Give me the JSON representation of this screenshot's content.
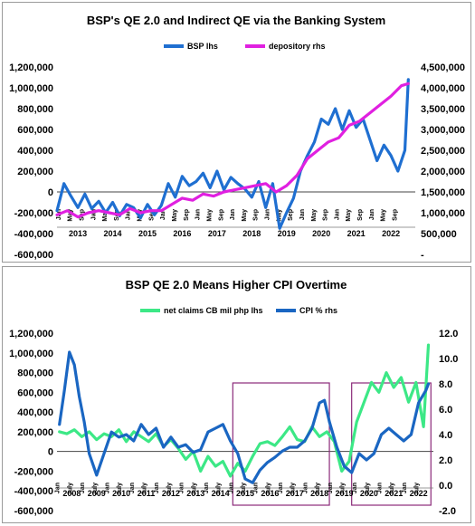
{
  "chart_data": [
    {
      "type": "line",
      "title": "BSP's QE 2.0 and Indirect QE via the Banking System",
      "legend_position": "top",
      "series": [
        {
          "name": "BSP lhs",
          "axis": "left",
          "color": "#1f6fd1",
          "x": [
            2012.9,
            2013.1,
            2013.3,
            2013.5,
            2013.7,
            2013.9,
            2014.1,
            2014.3,
            2014.5,
            2014.7,
            2014.9,
            2015.1,
            2015.3,
            2015.5,
            2015.7,
            2015.9,
            2016.1,
            2016.3,
            2016.5,
            2016.7,
            2016.9,
            2017.1,
            2017.3,
            2017.5,
            2017.7,
            2017.9,
            2018.1,
            2018.3,
            2018.5,
            2018.7,
            2018.9,
            2019.1,
            2019.3,
            2019.5,
            2019.7,
            2019.9,
            2020.1,
            2020.3,
            2020.5,
            2020.7,
            2020.9,
            2021.1,
            2021.3,
            2021.5,
            2021.7,
            2021.9,
            2022.1,
            2022.3,
            2022.5,
            2022.7,
            2022.9,
            2023.0
          ],
          "values": [
            -180000,
            80000,
            -40000,
            -150000,
            -20000,
            -160000,
            -90000,
            -200000,
            -100000,
            -230000,
            -120000,
            -150000,
            -250000,
            -120000,
            -220000,
            -130000,
            80000,
            -50000,
            150000,
            60000,
            100000,
            180000,
            40000,
            200000,
            20000,
            140000,
            80000,
            30000,
            -50000,
            100000,
            -150000,
            80000,
            -350000,
            -200000,
            -60000,
            200000,
            350000,
            480000,
            700000,
            650000,
            800000,
            600000,
            780000,
            620000,
            700000,
            500000,
            300000,
            450000,
            350000,
            200000,
            400000,
            1080000
          ]
        },
        {
          "name": "depository rhs",
          "axis": "right",
          "color": "#e020e0",
          "x": [
            2012.9,
            2013.2,
            2013.5,
            2013.8,
            2014.1,
            2014.4,
            2014.7,
            2015.0,
            2015.3,
            2015.6,
            2015.9,
            2016.2,
            2016.5,
            2016.8,
            2017.1,
            2017.4,
            2017.7,
            2018.0,
            2018.3,
            2018.6,
            2018.9,
            2019.2,
            2019.5,
            2019.8,
            2020.1,
            2020.4,
            2020.7,
            2021.0,
            2021.3,
            2021.6,
            2021.9,
            2022.2,
            2022.5,
            2022.8,
            2023.0
          ],
          "values": [
            950000,
            1050000,
            900000,
            1000000,
            1050000,
            1000000,
            950000,
            1100000,
            1000000,
            1050000,
            1050000,
            1200000,
            1350000,
            1300000,
            1450000,
            1400000,
            1500000,
            1550000,
            1600000,
            1650000,
            1700000,
            1500000,
            1650000,
            1900000,
            2300000,
            2500000,
            2700000,
            2800000,
            3100000,
            3200000,
            3400000,
            3600000,
            3800000,
            4050000,
            4100000
          ]
        }
      ],
      "left_axis": {
        "ticks": [
          "1,200,000",
          "1,000,000",
          "800,000",
          "600,000",
          "400,000",
          "200,000",
          "0",
          "-200,000",
          "-400,000",
          "-600,000"
        ],
        "ylim": [
          -600000,
          1200000
        ]
      },
      "right_axis": {
        "ticks": [
          "4,500,000",
          "4,000,000",
          "3,500,000",
          "3,000,000",
          "2,500,000",
          "2,000,000",
          "1,500,000",
          "1,000,000",
          "500,000",
          "-"
        ],
        "ylim": [
          0,
          4500000
        ]
      },
      "year_labels": [
        "2013",
        "2014",
        "2015",
        "2016",
        "2017",
        "2018",
        "2019",
        "2020",
        "2021",
        "2022"
      ],
      "month_labels": [
        "Jan",
        "May",
        "Sep"
      ],
      "xlim": [
        2012.9,
        2023.2
      ]
    },
    {
      "type": "line",
      "title": "BSP QE 2.0 Means Higher CPI Overtime",
      "legend_position": "top",
      "series": [
        {
          "name": "net claims CB mil php lhs",
          "axis": "left",
          "color": "#3ce886",
          "x": [
            2008.0,
            2008.3,
            2008.6,
            2008.9,
            2009.2,
            2009.5,
            2009.8,
            2010.1,
            2010.4,
            2010.7,
            2011.0,
            2011.3,
            2011.6,
            2011.9,
            2012.2,
            2012.5,
            2012.8,
            2013.1,
            2013.4,
            2013.7,
            2014.0,
            2014.3,
            2014.6,
            2014.9,
            2015.2,
            2015.5,
            2015.8,
            2016.1,
            2016.4,
            2016.7,
            2017.0,
            2017.3,
            2017.6,
            2017.9,
            2018.2,
            2018.5,
            2018.8,
            2019.1,
            2019.4,
            2019.7,
            2020.0,
            2020.3,
            2020.6,
            2020.9,
            2021.2,
            2021.5,
            2021.8,
            2022.1,
            2022.4,
            2022.7,
            2022.9
          ],
          "values": [
            200000,
            180000,
            220000,
            150000,
            200000,
            120000,
            180000,
            150000,
            220000,
            100000,
            200000,
            150000,
            100000,
            180000,
            50000,
            120000,
            30000,
            -80000,
            0,
            -200000,
            -50000,
            -150000,
            -100000,
            -250000,
            -120000,
            -200000,
            -50000,
            80000,
            100000,
            60000,
            150000,
            250000,
            120000,
            100000,
            250000,
            150000,
            200000,
            100000,
            -200000,
            -100000,
            300000,
            500000,
            700000,
            600000,
            800000,
            650000,
            750000,
            500000,
            700000,
            250000,
            1080000
          ]
        },
        {
          "name": "CPI % rhs",
          "axis": "right",
          "color": "#1a66c2",
          "x": [
            2008.0,
            2008.2,
            2008.4,
            2008.6,
            2008.8,
            2009.0,
            2009.2,
            2009.5,
            2009.8,
            2010.1,
            2010.4,
            2010.7,
            2011.0,
            2011.3,
            2011.6,
            2011.9,
            2012.2,
            2012.5,
            2012.8,
            2013.1,
            2013.4,
            2013.7,
            2014.0,
            2014.3,
            2014.6,
            2014.9,
            2015.2,
            2015.5,
            2015.8,
            2016.1,
            2016.4,
            2016.7,
            2017.0,
            2017.3,
            2017.6,
            2017.9,
            2018.2,
            2018.5,
            2018.7,
            2018.9,
            2019.2,
            2019.5,
            2019.8,
            2020.1,
            2020.4,
            2020.7,
            2021.0,
            2021.3,
            2021.6,
            2021.9,
            2022.2,
            2022.5,
            2022.8,
            2022.9
          ],
          "values": [
            4.8,
            7.5,
            10.5,
            9.5,
            7.0,
            5.0,
            2.5,
            0.8,
            2.5,
            4.2,
            3.8,
            4.0,
            3.5,
            4.8,
            4.0,
            4.5,
            3.0,
            3.8,
            3.0,
            3.2,
            2.6,
            2.8,
            4.2,
            4.5,
            4.8,
            3.5,
            2.5,
            0.5,
            0.2,
            1.2,
            1.8,
            2.2,
            2.7,
            3.0,
            3.0,
            3.5,
            4.5,
            6.5,
            6.7,
            5.0,
            3.0,
            1.5,
            1.0,
            2.5,
            2.0,
            2.5,
            4.0,
            4.5,
            4.0,
            3.5,
            4.0,
            6.5,
            7.5,
            8.0
          ]
        }
      ],
      "left_axis": {
        "ticks": [
          "1,200,000",
          "1,000,000",
          "800,000",
          "600,000",
          "400,000",
          "200,000",
          "0",
          "-200,000",
          "-400,000",
          "-600,000"
        ],
        "ylim": [
          -600000,
          1200000
        ]
      },
      "right_axis": {
        "ticks": [
          "12.0",
          "10.0",
          "8.0",
          "6.0",
          "4.0",
          "2.0",
          "0.0",
          "-2.0"
        ],
        "ylim": [
          -2,
          12
        ]
      },
      "year_labels": [
        "2008",
        "2009",
        "2010",
        "2011",
        "2012",
        "2013",
        "2014",
        "2015",
        "2016",
        "2017",
        "2018",
        "2019",
        "2020",
        "2021",
        "2022"
      ],
      "month_labels": [
        "Jan",
        "July"
      ],
      "highlight_boxes": [
        {
          "from": 2015.0,
          "to": 2018.9
        },
        {
          "from": 2019.8,
          "to": 2023.0
        }
      ],
      "xlim": [
        2007.9,
        2023.1
      ]
    }
  ]
}
